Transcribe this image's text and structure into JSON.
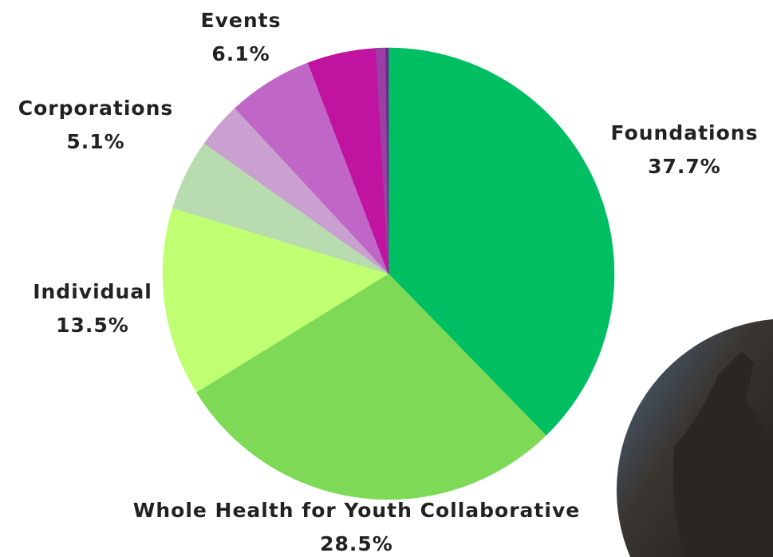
{
  "chart_data": {
    "type": "pie",
    "categories": [
      "Foundations",
      "Whole Health for Youth Collaborative",
      "Individual",
      "Corporations",
      null,
      "Events",
      null,
      null,
      null
    ],
    "values": [
      37.7,
      28.5,
      13.5,
      5.1,
      3.3,
      6.1,
      4.9,
      0.7,
      0.2
    ],
    "value_labels": [
      "37.7%",
      "28.5%",
      "13.5%",
      "5.1%",
      null,
      "6.1%",
      null,
      null,
      null
    ],
    "colors": [
      "#00bf63",
      "#7ed957",
      "#c1ff72",
      "#b8dbb0",
      "#c9a0cf",
      "#c066c6",
      "#c0139f",
      "#9b3fa6",
      "#6a2a8a"
    ]
  }
}
